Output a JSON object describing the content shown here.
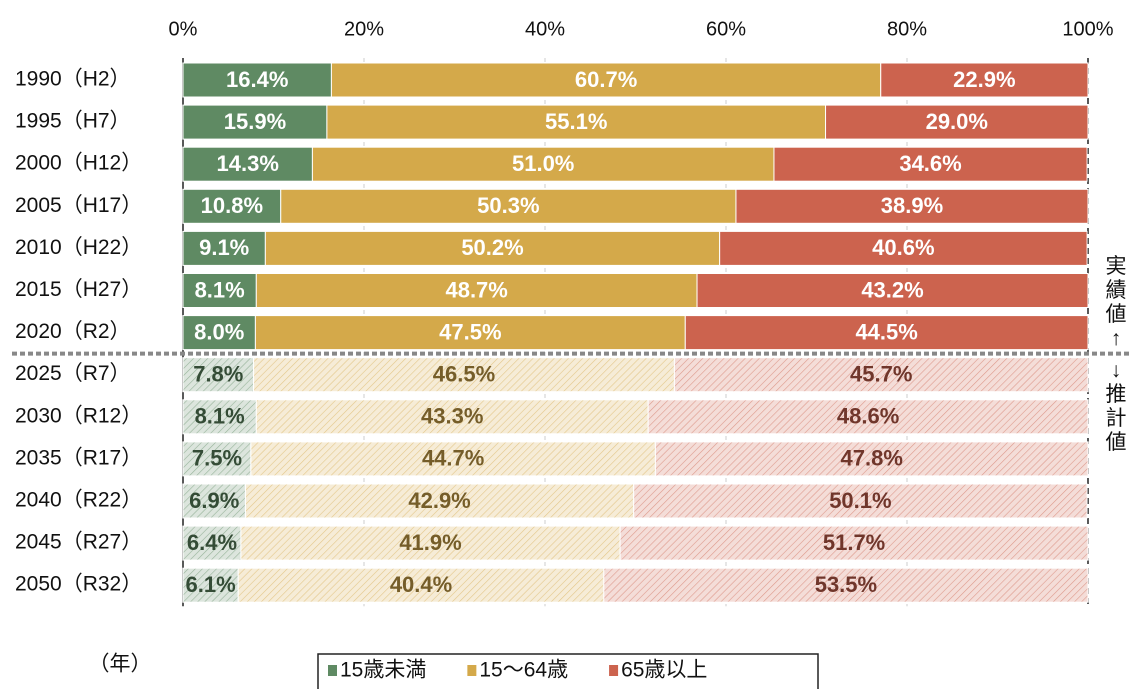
{
  "chart_data": {
    "type": "stacked_barh",
    "categories": [
      "1990（H2）",
      "1995（H7）",
      "2000（H12）",
      "2005（H17）",
      "2010（H22）",
      "2015（H27）",
      "2020（R2）",
      "2025（R7）",
      "2030（R12）",
      "2035（R17）",
      "2040（R22）",
      "2045（R27）",
      "2050（R32）"
    ],
    "projected": [
      false,
      false,
      false,
      false,
      false,
      false,
      false,
      true,
      true,
      true,
      true,
      true,
      true
    ],
    "series": [
      {
        "name": "15歳未満",
        "color": "#5f8a63",
        "values": [
          16.4,
          15.9,
          14.3,
          10.8,
          9.1,
          8.1,
          8.0,
          7.8,
          8.1,
          7.5,
          6.9,
          6.4,
          6.1
        ],
        "value_labels": [
          "16.4%",
          "15.9%",
          "14.3%",
          "10.8%",
          "9.1%",
          "8.1%",
          "8.0%",
          "7.8%",
          "8.1%",
          "7.5%",
          "6.9%",
          "6.4%",
          "6.1%"
        ]
      },
      {
        "name": "15～64歳",
        "color": "#d4a94a",
        "values": [
          60.7,
          55.1,
          51.0,
          50.3,
          50.2,
          48.7,
          47.5,
          46.5,
          43.3,
          44.7,
          42.9,
          41.9,
          40.4
        ],
        "value_labels": [
          "60.7%",
          "55.1%",
          "51.0%",
          "50.3%",
          "50.2%",
          "48.7%",
          "47.5%",
          "46.5%",
          "43.3%",
          "44.7%",
          "42.9%",
          "41.9%",
          "40.4%"
        ]
      },
      {
        "name": "65歳以上",
        "color": "#cc634e",
        "values": [
          22.9,
          29.0,
          34.6,
          38.9,
          40.6,
          43.2,
          44.5,
          45.7,
          48.6,
          47.8,
          50.1,
          51.7,
          53.5
        ],
        "value_labels": [
          "22.9%",
          "29.0%",
          "34.6%",
          "38.9%",
          "40.6%",
          "43.2%",
          "44.5%",
          "45.7%",
          "48.6%",
          "47.8%",
          "50.1%",
          "51.7%",
          "53.5%"
        ]
      }
    ],
    "xlim": [
      0,
      100
    ],
    "xticks": [
      {
        "value": 0,
        "label": "0%"
      },
      {
        "value": 20,
        "label": "20%"
      },
      {
        "value": 40,
        "label": "40%"
      },
      {
        "value": 60,
        "label": "60%"
      },
      {
        "value": 80,
        "label": "80%"
      },
      {
        "value": 100,
        "label": "100%"
      }
    ],
    "ylabel": "（年）",
    "actual_label": "実績値↑",
    "projected_label": "↓推計値",
    "grid": true,
    "legend": "bottom"
  }
}
